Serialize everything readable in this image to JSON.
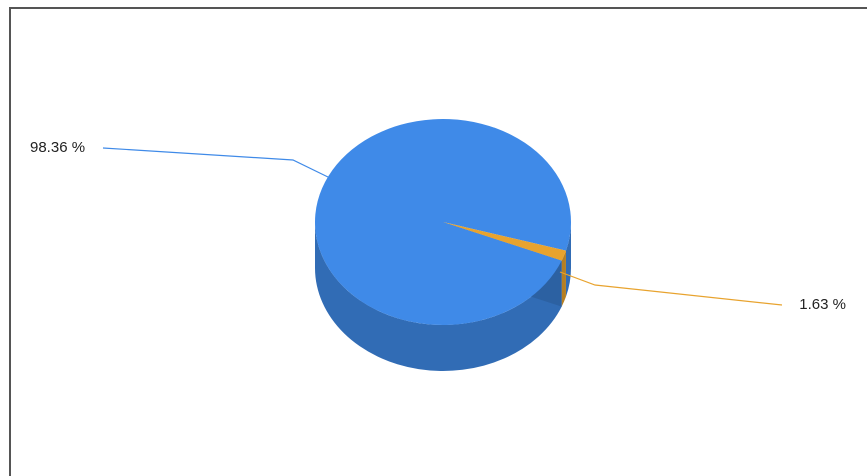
{
  "chart_data": {
    "type": "pie",
    "categories": [
      null,
      null
    ],
    "values": [
      98.36,
      1.63
    ],
    "value_labels": [
      "98.36 %",
      "1.63 %"
    ],
    "colors": [
      "#3f8ae8",
      "#e8a32e"
    ]
  }
}
